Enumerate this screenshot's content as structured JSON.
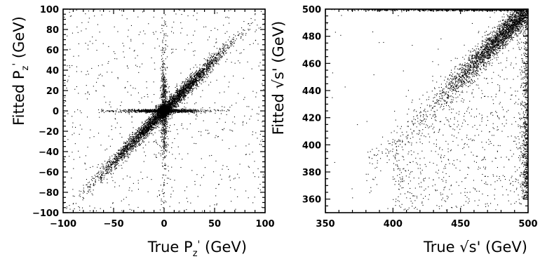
{
  "chart_data": [
    {
      "type": "scatter",
      "xlabel": "True P",
      "xlabel_sub": "z",
      "xlabel_prime": "'",
      "xlabel_unit": " (GeV)",
      "ylabel": "Fitted P",
      "ylabel_sub": "z",
      "ylabel_prime": "'",
      "ylabel_unit": " (GeV)",
      "xlim": [
        -100,
        100
      ],
      "ylim": [
        -100,
        100
      ],
      "xticks": [
        -100,
        -50,
        0,
        50,
        100
      ],
      "yticks": [
        -100,
        -80,
        -60,
        -40,
        -20,
        0,
        20,
        40,
        60,
        80,
        100
      ],
      "xtick_labels": [
        "−100",
        "−50",
        "0",
        "50",
        "100"
      ],
      "ytick_labels": [
        "−100",
        "−80",
        "−60",
        "−40",
        "−20",
        "0",
        "20",
        "40",
        "60",
        "80",
        "100"
      ],
      "grid": false,
      "legend": "none",
      "point_color": "#000000",
      "distribution": "dense diagonal y≈x, dense cluster at (0,0), horizontal band at y=0 (|x|<60), vertical band at x=0, uniform background"
    },
    {
      "type": "scatter",
      "xlabel": "True ",
      "xlabel_sym": "√s'",
      "xlabel_unit": " (GeV)",
      "ylabel": "Fitted ",
      "ylabel_sym": "√s'",
      "ylabel_unit": " (GeV)",
      "xlim": [
        350,
        500
      ],
      "ylim": [
        350,
        500
      ],
      "xticks": [
        350,
        400,
        450,
        500
      ],
      "yticks": [
        360,
        380,
        400,
        420,
        440,
        460,
        480,
        500
      ],
      "xtick_labels": [
        "350",
        "400",
        "450",
        "500"
      ],
      "ytick_labels": [
        "360",
        "380",
        "400",
        "420",
        "440",
        "460",
        "480",
        "500"
      ],
      "grid": false,
      "legend": "none",
      "point_color": "#000000",
      "distribution": "diagonal y≈x densifying toward 500, dense horizontal band at y=500, dense column at x=500, sparse lower triangle"
    }
  ]
}
